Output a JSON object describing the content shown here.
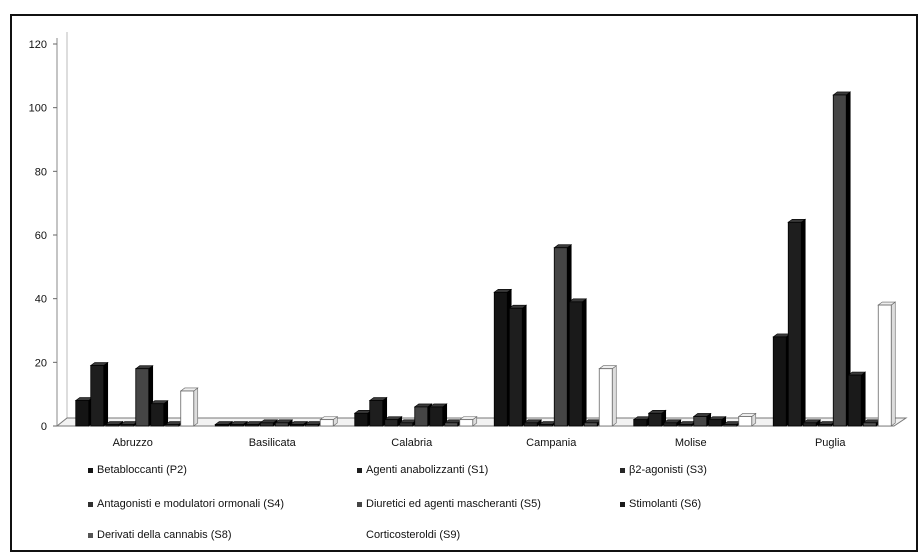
{
  "chart_data": {
    "type": "bar",
    "categories": [
      "Abruzzo",
      "Basilicata",
      "Calabria",
      "Campania",
      "Molise",
      "Puglia"
    ],
    "ylim": [
      0,
      120
    ],
    "yticks": [
      0,
      20,
      40,
      60,
      80,
      100,
      120
    ],
    "grid": false,
    "legend_position": "bottom",
    "series": [
      {
        "name": "Betabloccanti (P2)",
        "color": "#141414",
        "values": [
          8,
          0,
          4,
          42,
          2,
          28
        ]
      },
      {
        "name": "Agenti anabolizzanti (S1)",
        "color": "#1e1e1e",
        "values": [
          19,
          0,
          8,
          37,
          4,
          64
        ]
      },
      {
        "name": "β2-agonisti (S3)",
        "color": "#262626",
        "values": [
          0,
          0,
          2,
          1,
          1,
          1
        ]
      },
      {
        "name": "Antagonisti e modulatori ormonali (S4)",
        "color": "#303030",
        "values": [
          0,
          1,
          1,
          0,
          0,
          0
        ]
      },
      {
        "name": "Diuretici ed agenti mascheranti (S5)",
        "color": "#454545",
        "values": [
          18,
          1,
          6,
          56,
          3,
          104
        ]
      },
      {
        "name": "Stimolanti (S6)",
        "color": "#1a1a1a",
        "values": [
          7,
          0,
          6,
          39,
          2,
          16
        ]
      },
      {
        "name": "Derivati della cannabis (S8)",
        "color": "#555555",
        "values": [
          0,
          0,
          1,
          1,
          0,
          1
        ]
      },
      {
        "name": "Corticosteroldi (S9)",
        "color": "#ffffff",
        "values": [
          11,
          2,
          2,
          18,
          3,
          38
        ]
      }
    ]
  }
}
